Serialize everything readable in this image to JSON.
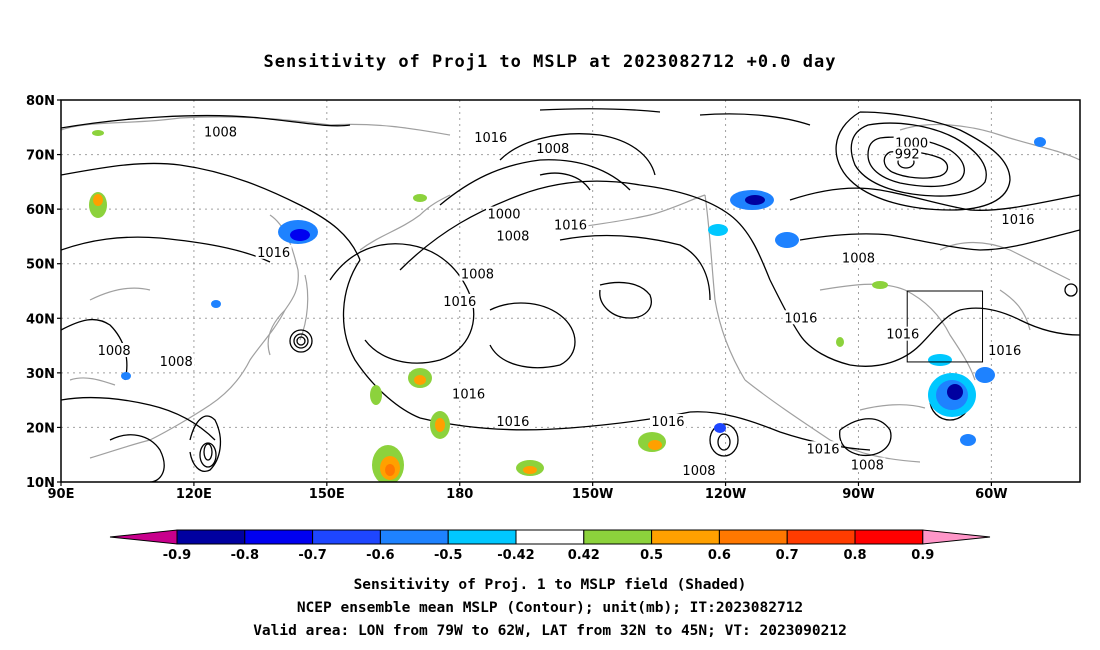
{
  "title": "Sensitivity of Proj1 to MSLP at 2023082712 +0.0 day",
  "lat_labels": [
    "80N",
    "70N",
    "60N",
    "50N",
    "40N",
    "30N",
    "20N",
    "10N"
  ],
  "lon_labels": [
    "90E",
    "120E",
    "150E",
    "180",
    "150W",
    "120W",
    "90W",
    "60W"
  ],
  "contour_labels": [
    {
      "text": "1008",
      "lon": 126,
      "lat": 74
    },
    {
      "text": "1016",
      "lon": -173,
      "lat": 73
    },
    {
      "text": "1008",
      "lon": -159,
      "lat": 71
    },
    {
      "text": "1000",
      "lon": -78,
      "lat": 72
    },
    {
      "text": "992",
      "lon": -79,
      "lat": 70
    },
    {
      "text": "1000",
      "lon": -170,
      "lat": 59
    },
    {
      "text": "1008",
      "lon": -168,
      "lat": 55
    },
    {
      "text": "1016",
      "lon": -155,
      "lat": 57
    },
    {
      "text": "1016",
      "lon": 138,
      "lat": 52
    },
    {
      "text": "1008",
      "lon": -176,
      "lat": 48
    },
    {
      "text": "1016",
      "lon": -180,
      "lat": 43
    },
    {
      "text": "1008",
      "lon": -90,
      "lat": 51
    },
    {
      "text": "1016",
      "lon": -54,
      "lat": 58
    },
    {
      "text": "1016",
      "lon": -103,
      "lat": 40
    },
    {
      "text": "1016",
      "lon": -80,
      "lat": 37
    },
    {
      "text": "1016",
      "lon": -57,
      "lat": 34
    },
    {
      "text": "1008",
      "lon": 102,
      "lat": 34
    },
    {
      "text": "1008",
      "lon": 116,
      "lat": 32
    },
    {
      "text": "1016",
      "lon": -178,
      "lat": 26
    },
    {
      "text": "1016",
      "lon": -168,
      "lat": 21
    },
    {
      "text": "1016",
      "lon": -133,
      "lat": 21
    },
    {
      "text": "1016",
      "lon": -98,
      "lat": 16
    },
    {
      "text": "1008",
      "lon": -126,
      "lat": 12
    },
    {
      "text": "1008",
      "lon": -88,
      "lat": 13
    }
  ],
  "valid_box": {
    "lon_min": -79,
    "lon_max": -62,
    "lat_min": 32,
    "lat_max": 45
  },
  "colorbar": {
    "labels": [
      "-0.9",
      "-0.8",
      "-0.7",
      "-0.6",
      "-0.5",
      "-0.42",
      "0.42",
      "0.5",
      "0.6",
      "0.7",
      "0.8",
      "0.9"
    ],
    "colors": {
      "lt_min": "#c8008c",
      "bins": [
        "#0000a0",
        "#0000f0",
        "#1e46ff",
        "#1e82ff",
        "#00c8ff",
        "#ffffff",
        "#8cd23c",
        "#ffa000",
        "#ff7800",
        "#ff3c00",
        "#ff0000"
      ],
      "gt_max": "#ff96c8"
    }
  },
  "caption": {
    "line1": "Sensitivity of Proj. 1 to MSLP field (Shaded)",
    "line2": "NCEP ensemble mean MSLP (Contour); unit(mb); IT:2023082712",
    "line3": "Valid area: LON from 79W to 62W, LAT from 32N to 45N; VT: 2023090212"
  },
  "colors": {
    "contour": "#000000",
    "coastline": "#a0a0a0",
    "grid": "#a0a0a0"
  }
}
